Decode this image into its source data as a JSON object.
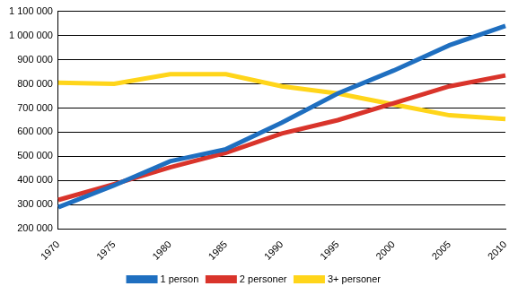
{
  "chart_data": {
    "type": "line",
    "categories": [
      "1970",
      "1975",
      "1980",
      "1985",
      "1990",
      "1995",
      "2000",
      "2005",
      "2010"
    ],
    "series": [
      {
        "name": "1 person",
        "color": "#1f6fc0",
        "values": [
          290000,
          380000,
          480000,
          530000,
          640000,
          760000,
          855000,
          960000,
          1040000
        ]
      },
      {
        "name": "2 personer",
        "color": "#d9342b",
        "values": [
          320000,
          385000,
          455000,
          515000,
          595000,
          650000,
          720000,
          790000,
          835000
        ]
      },
      {
        "name": "3+ personer",
        "color": "#ffd51a",
        "values": [
          805000,
          800000,
          840000,
          840000,
          790000,
          760000,
          715000,
          670000,
          655000
        ]
      }
    ],
    "ylim": [
      200000,
      1100000
    ],
    "yticks": [
      {
        "value": 200000,
        "label": "200 000"
      },
      {
        "value": 300000,
        "label": "300 000"
      },
      {
        "value": 400000,
        "label": "400 000"
      },
      {
        "value": 500000,
        "label": "500 000"
      },
      {
        "value": 600000,
        "label": "600 000"
      },
      {
        "value": 700000,
        "label": "700 000"
      },
      {
        "value": 800000,
        "label": "800 000"
      },
      {
        "value": 900000,
        "label": "900 000"
      },
      {
        "value": 1000000,
        "label": "1 000 000"
      },
      {
        "value": 1100000,
        "label": "1 100 000"
      }
    ],
    "grid": true,
    "legend": "bottom"
  }
}
